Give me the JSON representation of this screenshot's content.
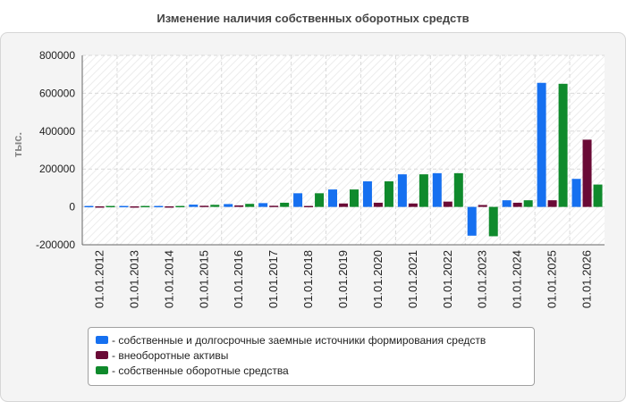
{
  "chart_data": {
    "type": "bar",
    "title": "Изменение наличия собственных оборотных средств",
    "ylabel": "тыс.",
    "xlabel": "",
    "ylim": [
      -200000,
      800000
    ],
    "yticks": [
      800000,
      600000,
      400000,
      200000,
      0,
      -200000
    ],
    "ytick_labels": [
      "800000",
      "600000",
      "400000",
      "200000",
      "0",
      "-200000"
    ],
    "grid": true,
    "legend_position": "bottom",
    "categories": [
      "01.01.2012",
      "01.01.2013",
      "01.01.2014",
      "01.01.2015",
      "01.01.2016",
      "01.01.2017",
      "01.01.2018",
      "01.01.2019",
      "01.01.2020",
      "01.01.2021",
      "01.01.2022",
      "01.01.2023",
      "01.01.2024",
      "01.01.2025",
      "01.01.2026"
    ],
    "series": [
      {
        "name": "собственные и долгосрочные заемные источники формирования средств",
        "color": "#1670f0",
        "values": [
          5000,
          5000,
          5000,
          12000,
          15000,
          20000,
          72000,
          92000,
          135000,
          172000,
          178000,
          -152000,
          35000,
          655000,
          148000
        ]
      },
      {
        "name": "внеоборотные активы",
        "color": "#6a0a36",
        "values": [
          3000,
          3000,
          3000,
          6000,
          8000,
          6000,
          5000,
          18000,
          22000,
          18000,
          28000,
          10000,
          22000,
          35000,
          355000
        ]
      },
      {
        "name": "собственные оборотные средства",
        "color": "#0f8a2c",
        "values": [
          5000,
          5000,
          5000,
          11000,
          16000,
          22000,
          72000,
          92000,
          135000,
          172000,
          178000,
          -155000,
          35000,
          650000,
          118000
        ]
      }
    ]
  },
  "legend": {
    "items": [
      {
        "label": "- собственные и долгосрочные заемные источники формирования средств",
        "color": "#1670f0"
      },
      {
        "label": "- внеоборотные активы",
        "color": "#6a0a36"
      },
      {
        "label": "- собственные оборотные средства",
        "color": "#0f8a2c"
      }
    ]
  }
}
